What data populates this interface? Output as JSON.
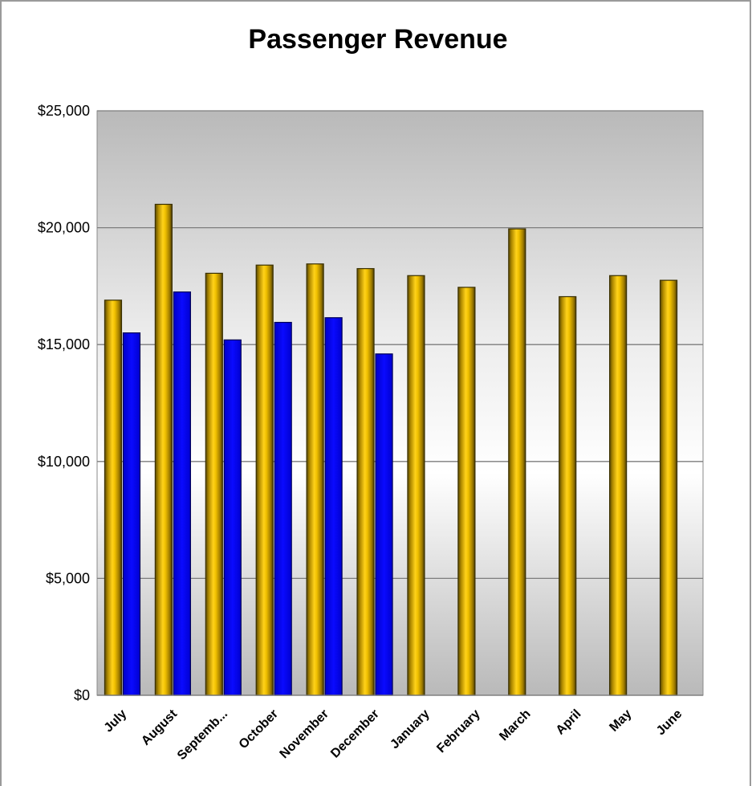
{
  "chart_data": {
    "type": "bar",
    "title": "Passenger Revenue",
    "xlabel": "",
    "ylabel": "",
    "categories": [
      "July",
      "August",
      "Septemb...",
      "October",
      "November",
      "December",
      "January",
      "February",
      "March",
      "April",
      "May",
      "June"
    ],
    "series": [
      {
        "values": [
          16900,
          21000,
          18050,
          18400,
          18450,
          18250,
          17950,
          17450,
          19950,
          17050,
          17950,
          17750
        ],
        "color": "#E8B800"
      },
      {
        "values": [
          15500,
          17250,
          15200,
          15950,
          16150,
          14600,
          null,
          null,
          null,
          null,
          null,
          null
        ],
        "color": "#0000E6"
      }
    ],
    "ylim": [
      0,
      25000
    ],
    "yticks": [
      "$0",
      "$5,000",
      "$10,000",
      "$15,000",
      "$20,000",
      "$25,000"
    ],
    "ytick_values": [
      0,
      5000,
      10000,
      15000,
      20000,
      25000
    ],
    "grid": true,
    "legend": "none"
  }
}
